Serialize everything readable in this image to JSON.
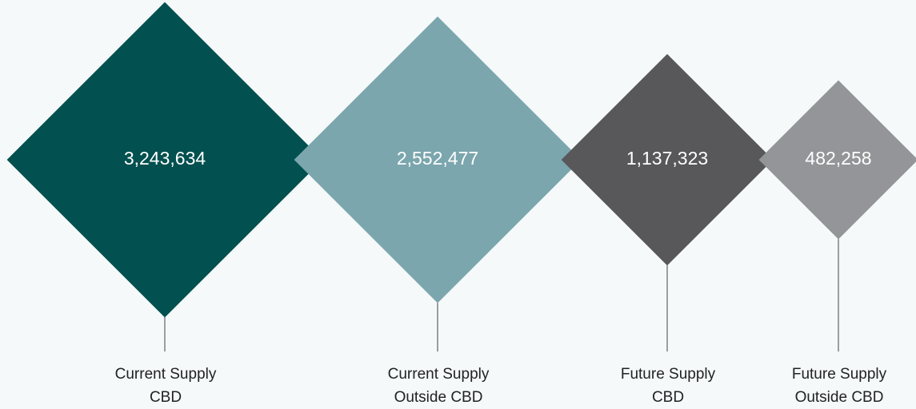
{
  "chart_data": {
    "type": "diamond",
    "categories": [
      [
        "Current Supply",
        "CBD"
      ],
      [
        "Current Supply",
        "Outside CBD"
      ],
      [
        "Future Supply",
        "CBD"
      ],
      [
        "Future Supply",
        "Outside CBD"
      ]
    ],
    "values": [
      3243634,
      2552477,
      1137323,
      482258
    ],
    "value_labels": [
      "3,243,634",
      "2,552,477",
      "1,137,323",
      "482,258"
    ],
    "colors": [
      "#02504f",
      "#7ba6ae",
      "#58585a",
      "#939598"
    ]
  }
}
